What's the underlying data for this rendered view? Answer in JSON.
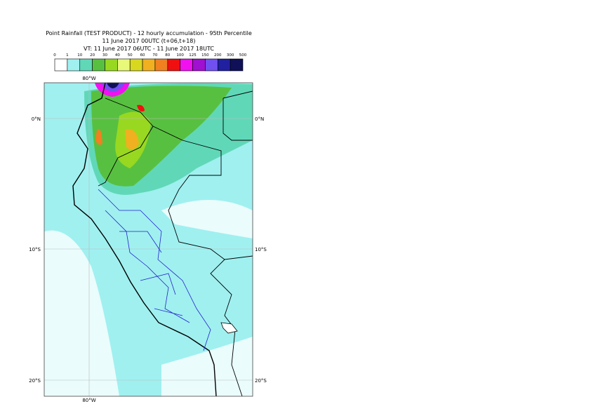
{
  "header": {
    "lines": [
      "Point Rainfall (TEST PRODUCT) - 12 hourly accumulation - 95th Percentile",
      "11 June 2017 00UTC (t+06,t+18)",
      "VT: 11 June 2017 06UTC - 11 June 2017 18UTC"
    ]
  },
  "legend": {
    "labels": [
      0,
      1,
      10,
      20,
      30,
      40,
      50,
      60,
      70,
      80,
      100,
      125,
      150,
      200,
      300,
      500
    ],
    "colors": [
      "#ffffff",
      "#a0f0f0",
      "#60d8b8",
      "#58c040",
      "#98d820",
      "#e8f878",
      "#d8d820",
      "#f0b020",
      "#f08020",
      "#f01010",
      "#f010f0",
      "#a010d0",
      "#7050f0",
      "#2020a0",
      "#101058"
    ]
  },
  "map": {
    "lon_top": "80°W",
    "lon_bottom": "80°W",
    "lat_left": [
      "0°N",
      "10°S",
      "20°S"
    ],
    "lat_right": [
      "0°N",
      "10°S",
      "20°S"
    ]
  }
}
